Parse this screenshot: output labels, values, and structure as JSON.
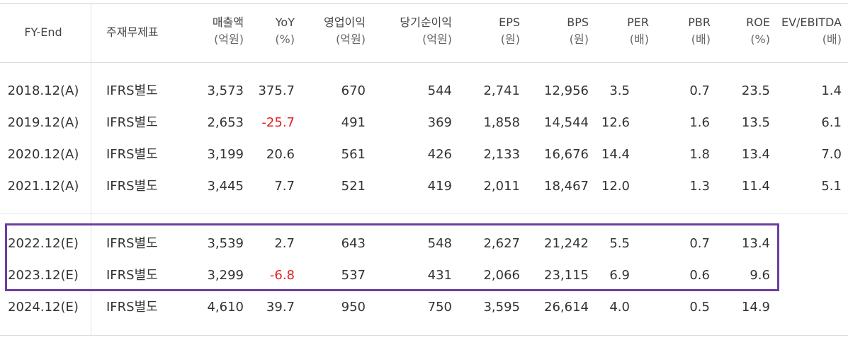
{
  "table": {
    "headers": [
      {
        "id": "fy",
        "line1": "FY-End",
        "line2": ""
      },
      {
        "id": "basis",
        "line1": "주재무제표",
        "line2": ""
      },
      {
        "id": "sales",
        "line1": "매출액",
        "line2": "(억원)"
      },
      {
        "id": "yoy",
        "line1": "YoY",
        "line2": "(%)"
      },
      {
        "id": "op",
        "line1": "영업이익",
        "line2": "(억원)"
      },
      {
        "id": "net",
        "line1": "당기순이익",
        "line2": "(억원)"
      },
      {
        "id": "eps",
        "line1": "EPS",
        "line2": "(원)"
      },
      {
        "id": "bps",
        "line1": "BPS",
        "line2": "(원)"
      },
      {
        "id": "per",
        "line1": "PER",
        "line2": "(배)"
      },
      {
        "id": "pbr",
        "line1": "PBR",
        "line2": "(배)"
      },
      {
        "id": "roe",
        "line1": "ROE",
        "line2": "(%)"
      },
      {
        "id": "ev",
        "line1": "EV/EBITDA",
        "line2": "(배)"
      }
    ],
    "rows": [
      {
        "fy": "2018.12(A)",
        "basis": "IFRS별도",
        "sales": "3,573",
        "yoy": "375.7",
        "op": "670",
        "net": "544",
        "eps": "2,741",
        "bps": "12,956",
        "per": "3.5",
        "pbr": "0.7",
        "roe": "23.5",
        "ev": "1.4"
      },
      {
        "fy": "2019.12(A)",
        "basis": "IFRS별도",
        "sales": "2,653",
        "yoy": "-25.7",
        "op": "491",
        "net": "369",
        "eps": "1,858",
        "bps": "14,544",
        "per": "12.6",
        "pbr": "1.6",
        "roe": "13.5",
        "ev": "6.1"
      },
      {
        "fy": "2020.12(A)",
        "basis": "IFRS별도",
        "sales": "3,199",
        "yoy": "20.6",
        "op": "561",
        "net": "426",
        "eps": "2,133",
        "bps": "16,676",
        "per": "14.4",
        "pbr": "1.8",
        "roe": "13.4",
        "ev": "7.0"
      },
      {
        "fy": "2021.12(A)",
        "basis": "IFRS별도",
        "sales": "3,445",
        "yoy": "7.7",
        "op": "521",
        "net": "419",
        "eps": "2,011",
        "bps": "18,467",
        "per": "12.0",
        "pbr": "1.3",
        "roe": "11.4",
        "ev": "5.1"
      },
      {
        "fy": "2022.12(E)",
        "basis": "IFRS별도",
        "sales": "3,539",
        "yoy": "2.7",
        "op": "643",
        "net": "548",
        "eps": "2,627",
        "bps": "21,242",
        "per": "5.5",
        "pbr": "0.7",
        "roe": "13.4",
        "ev": ""
      },
      {
        "fy": "2023.12(E)",
        "basis": "IFRS별도",
        "sales": "3,299",
        "yoy": "-6.8",
        "op": "537",
        "net": "431",
        "eps": "2,066",
        "bps": "23,115",
        "per": "6.9",
        "pbr": "0.6",
        "roe": "9.6",
        "ev": ""
      },
      {
        "fy": "2024.12(E)",
        "basis": "IFRS별도",
        "sales": "4,610",
        "yoy": "39.7",
        "op": "950",
        "net": "750",
        "eps": "3,595",
        "bps": "26,614",
        "per": "4.0",
        "pbr": "0.5",
        "roe": "14.9",
        "ev": ""
      }
    ]
  },
  "colors": {
    "negative": "#e02020",
    "highlight_box": "#6a3fa0",
    "text": "#333333"
  }
}
